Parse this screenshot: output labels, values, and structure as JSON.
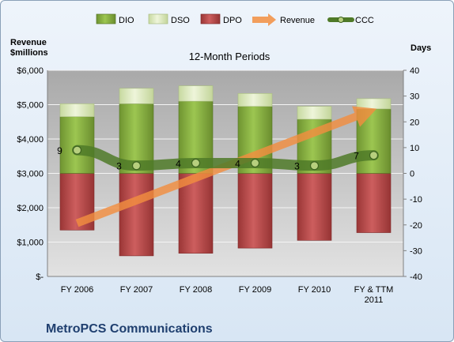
{
  "chart_data": {
    "type": "bar",
    "subtitle": "12-Month Periods",
    "company": "MetroPCS Communications",
    "left_axis_label": [
      "Revenue",
      "$millions"
    ],
    "right_axis_label": "Days",
    "categories": [
      [
        "FY 2006"
      ],
      [
        "FY 2007"
      ],
      [
        "FY 2008"
      ],
      [
        "FY 2009"
      ],
      [
        "FY 2010"
      ],
      [
        "FY & TTM",
        "2011"
      ]
    ],
    "left_ticks": [
      "$-",
      "$1,000",
      "$2,000",
      "$3,000",
      "$4,000",
      "$5,000",
      "$6,000"
    ],
    "left_ylim": [
      0,
      6000
    ],
    "right_ticks": [
      "-40",
      "-30",
      "-20",
      "-10",
      "0",
      "10",
      "20",
      "30",
      "40"
    ],
    "right_ylim": [
      -40,
      40
    ],
    "legend_position": "top",
    "series": [
      {
        "name": "DIO",
        "axis": "right",
        "kind": "stacked-bar",
        "color": "#8fb543",
        "values": [
          22,
          27,
          28,
          26,
          21,
          25
        ]
      },
      {
        "name": "DSO",
        "axis": "right",
        "kind": "stacked-bar",
        "color": "#dbe8bb",
        "values": [
          5,
          6,
          6,
          5,
          5,
          4
        ]
      },
      {
        "name": "DPO",
        "axis": "right",
        "kind": "negative-bar",
        "color": "#b84a4a",
        "values": [
          -22,
          -32,
          -31,
          -29,
          -26,
          -23
        ]
      },
      {
        "name": "Revenue",
        "axis": "left",
        "kind": "arrow-line",
        "color": "#f28e3f",
        "values": [
          1550,
          2250,
          2750,
          3450,
          4050,
          4850
        ]
      },
      {
        "name": "CCC",
        "axis": "right",
        "kind": "line-markers",
        "color": "#4f7a28",
        "values": [
          9,
          3,
          4,
          4,
          3,
          7
        ],
        "labels": [
          "9",
          "3",
          "4",
          "4",
          "3",
          "7"
        ]
      }
    ]
  }
}
